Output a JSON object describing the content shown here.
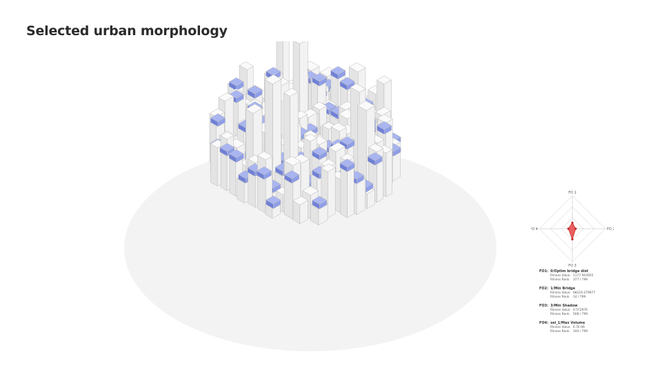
{
  "page": {
    "title": "Selected urban morphology"
  },
  "colors": {
    "building": "#f2f2f2",
    "building_edge": "#b9b9b9",
    "bridge_block": "#8e9ee8",
    "bridge_shade": "#6f80d8",
    "radar_fill": "#e84545"
  },
  "radar": {
    "axes": [
      "FO 1",
      "FO 2",
      "FO 3",
      "FO 4"
    ],
    "values": [
      0.18,
      0.1,
      0.32,
      0.12
    ]
  },
  "objectives": [
    {
      "id": "FO1:",
      "name": "0/Optim bridge dist",
      "rows": [
        {
          "label": "Fitness Value",
          "value": "1177.003655"
        },
        {
          "label": "Fitness Rank",
          "value": "377 / 799"
        }
      ]
    },
    {
      "id": "FO2:",
      "name": "1/Min Bridge",
      "rows": [
        {
          "label": "Fitness Value",
          "value": "68219.279977"
        },
        {
          "label": "Fitness Rank",
          "value": "14 / 799"
        }
      ]
    },
    {
      "id": "FO3:",
      "name": "3/Min Shadow",
      "rows": [
        {
          "label": "Fitness Value",
          "value": "0.572976"
        },
        {
          "label": "Fitness Rank",
          "value": "508 / 799"
        }
      ]
    },
    {
      "id": "FO4:",
      "name": "sel_1/Max Volume",
      "rows": [
        {
          "label": "Fitness Value",
          "value": "6.7E-06"
        },
        {
          "label": "Fitness Rank",
          "value": "104 / 799"
        }
      ]
    }
  ]
}
